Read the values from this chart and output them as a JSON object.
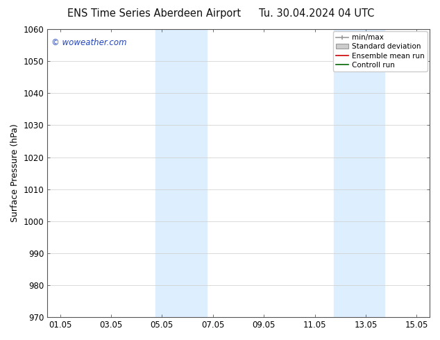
{
  "title_left": "ENS Time Series Aberdeen Airport",
  "title_right": "Tu. 30.04.2024 04 UTC",
  "ylabel": "Surface Pressure (hPa)",
  "ylim": [
    970,
    1060
  ],
  "yticks": [
    970,
    980,
    990,
    1000,
    1010,
    1020,
    1030,
    1040,
    1050,
    1060
  ],
  "xlim_start": -0.5,
  "xlim_end": 14.5,
  "xtick_positions": [
    0.0,
    2.0,
    4.0,
    6.0,
    8.0,
    10.0,
    12.0,
    14.0
  ],
  "xtick_labels": [
    "01.05",
    "03.05",
    "05.05",
    "07.05",
    "09.05",
    "11.05",
    "13.05",
    "15.05"
  ],
  "shaded_bands": [
    {
      "x_start": 3.75,
      "x_end": 5.75,
      "color": "#ddeeff"
    },
    {
      "x_start": 10.75,
      "x_end": 12.75,
      "color": "#ddeeff"
    }
  ],
  "watermark_text": "© woweather.com",
  "watermark_color": "#2244bb",
  "legend_labels": [
    "min/max",
    "Standard deviation",
    "Ensemble mean run",
    "Controll run"
  ],
  "background_color": "#ffffff",
  "plot_bg_color": "#ffffff",
  "grid_color": "#cccccc",
  "tick_label_fontsize": 8.5,
  "axis_label_fontsize": 9,
  "title_fontsize": 10.5
}
